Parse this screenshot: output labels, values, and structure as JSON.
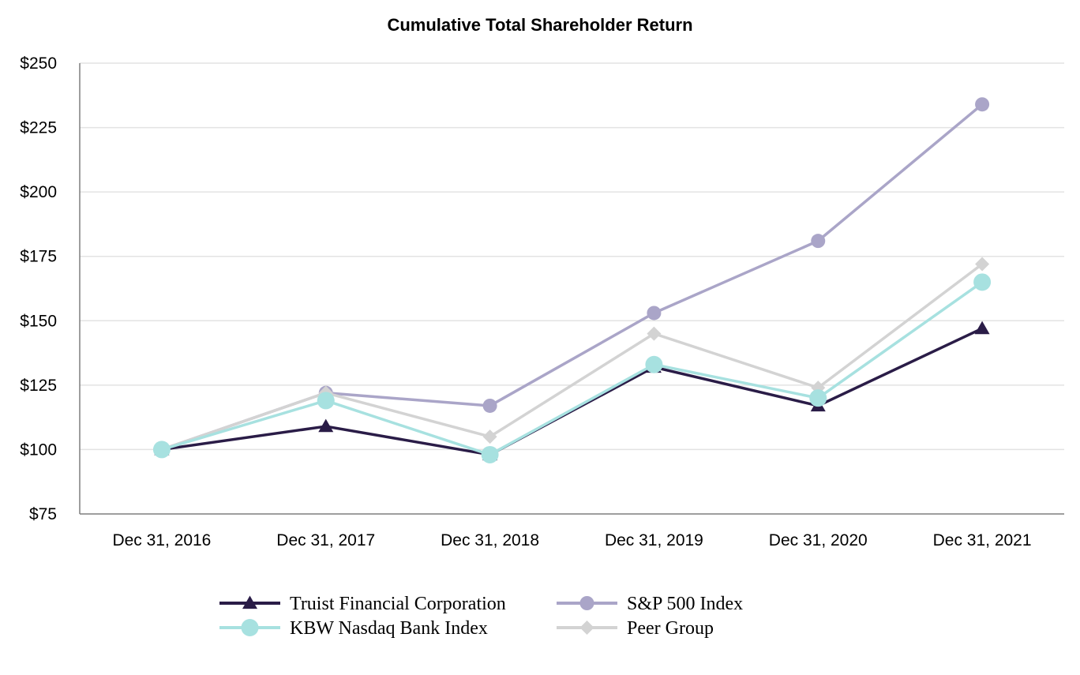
{
  "chart_data": {
    "type": "line",
    "title": "Cumulative Total Shareholder Return",
    "xlabel": "",
    "ylabel": "",
    "ylim": [
      75,
      250
    ],
    "yticks": [
      75,
      100,
      125,
      150,
      175,
      200,
      225,
      250
    ],
    "ytick_labels": [
      "$75",
      "$100",
      "$125",
      "$150",
      "$175",
      "$200",
      "$225",
      "$250"
    ],
    "categories": [
      "Dec 31, 2016",
      "Dec 31, 2017",
      "Dec 31, 2018",
      "Dec 31, 2019",
      "Dec 31, 2020",
      "Dec 31, 2021"
    ],
    "grid": true,
    "legend_position": "bottom",
    "series": [
      {
        "name": "S&P 500 Index",
        "values": [
          100,
          122,
          117,
          153,
          181,
          234
        ],
        "color": "#aaa5c8",
        "marker": "circle"
      },
      {
        "name": "Peer Group",
        "values": [
          100,
          122,
          105,
          145,
          124,
          172
        ],
        "color": "#d3d3d3",
        "marker": "diamond"
      },
      {
        "name": "Truist Financial Corporation",
        "values": [
          100,
          109,
          98,
          132,
          117,
          147
        ],
        "color": "#2a1c47",
        "marker": "triangle"
      },
      {
        "name": "KBW Nasdaq Bank Index",
        "values": [
          100,
          119,
          98,
          133,
          120,
          165
        ],
        "color": "#a7e1e0",
        "marker": "circle-large"
      }
    ],
    "legend_order": [
      "Truist Financial Corporation",
      "S&P 500 Index",
      "KBW Nasdaq Bank Index",
      "Peer Group"
    ]
  }
}
